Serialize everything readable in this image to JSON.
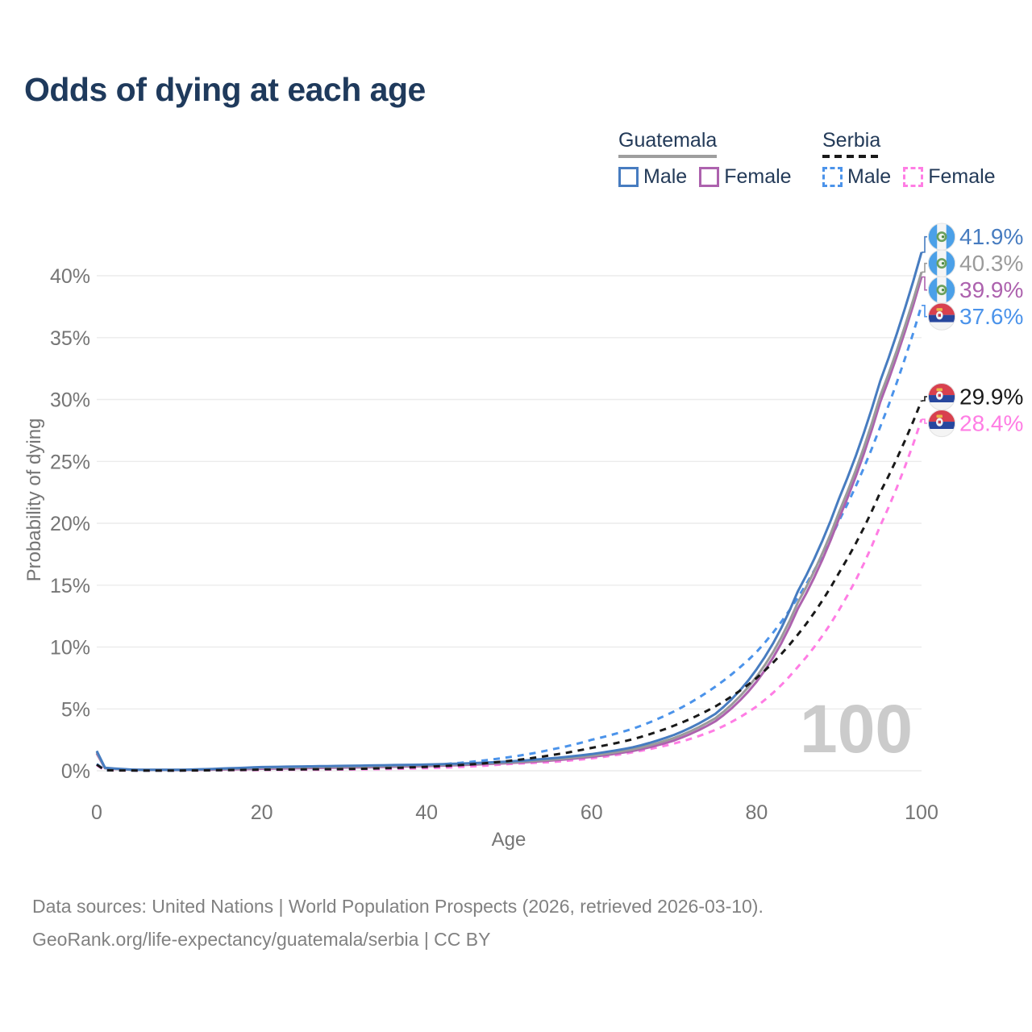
{
  "title": "Odds of dying at each age",
  "legend": {
    "groups": [
      {
        "label": "Guatemala",
        "line_style": "solid",
        "underline_color": "#9e9e9e",
        "items": [
          {
            "label": "Male",
            "color": "#477cc0"
          },
          {
            "label": "Female",
            "color": "#ad62ae"
          }
        ]
      },
      {
        "label": "Serbia",
        "line_style": "dashed",
        "underline_color": "#191919",
        "items": [
          {
            "label": "Male",
            "color": "#4b93ea"
          },
          {
            "label": "Female",
            "color": "#ff7de4"
          }
        ]
      }
    ]
  },
  "chart_data": {
    "type": "line",
    "title": "Odds of dying at each age",
    "xlabel": "Age",
    "ylabel": "Probability of dying",
    "xlim": [
      0,
      100
    ],
    "ylim": [
      0,
      43
    ],
    "xticks": [
      0,
      20,
      40,
      60,
      80,
      100
    ],
    "xtick_labels": [
      "0",
      "20",
      "40",
      "60",
      "80",
      "100"
    ],
    "yticks": [
      0,
      5,
      10,
      15,
      20,
      25,
      30,
      35,
      40
    ],
    "ytick_labels": [
      "0%",
      "5%",
      "10%",
      "15%",
      "20%",
      "25%",
      "30%",
      "35%",
      "40%"
    ],
    "grid": true,
    "legend_position": "top-right",
    "watermark": "100",
    "ages": [
      0,
      1,
      5,
      10,
      15,
      20,
      25,
      30,
      35,
      40,
      45,
      50,
      55,
      60,
      65,
      70,
      75,
      80,
      85,
      90,
      95,
      100
    ],
    "series": [
      {
        "name": "Serbia female",
        "country": "serbia",
        "sex": "female",
        "color": "#ff7de4",
        "dashed": true,
        "end_label": "28.4%",
        "end_value": 28.4,
        "values": [
          0.45,
          0.04,
          0.02,
          0.02,
          0.04,
          0.06,
          0.08,
          0.1,
          0.14,
          0.21,
          0.34,
          0.55,
          0.7,
          1.0,
          1.5,
          2.2,
          3.3,
          5.2,
          8.4,
          13.0,
          19.8,
          28.4
        ]
      },
      {
        "name": "Serbia male",
        "country": "serbia",
        "sex": "male",
        "color": "#4b93ea",
        "dashed": true,
        "end_label": "37.6%",
        "end_value": 37.6,
        "values": [
          0.55,
          0.05,
          0.02,
          0.02,
          0.06,
          0.12,
          0.15,
          0.2,
          0.3,
          0.45,
          0.7,
          1.1,
          1.7,
          2.5,
          3.4,
          4.8,
          6.8,
          9.6,
          14.0,
          20.2,
          27.8,
          37.6
        ]
      },
      {
        "name": "Guatemala female",
        "country": "guatemala",
        "sex": "female",
        "color": "#ad62ae",
        "dashed": false,
        "end_label": "39.9%",
        "end_value": 39.9,
        "values": [
          1.4,
          0.2,
          0.07,
          0.06,
          0.1,
          0.16,
          0.21,
          0.26,
          0.31,
          0.38,
          0.48,
          0.62,
          0.82,
          1.12,
          1.6,
          2.45,
          4.0,
          7.2,
          13.1,
          20.4,
          29.8,
          39.9
        ]
      },
      {
        "name": "Guatemala both sexes",
        "country": "guatemala",
        "sex": "all",
        "color": "#9b9b9b",
        "dashed": false,
        "end_label": "40.3%",
        "end_value": 40.3,
        "values": [
          1.5,
          0.22,
          0.07,
          0.07,
          0.14,
          0.24,
          0.29,
          0.33,
          0.38,
          0.44,
          0.54,
          0.68,
          0.9,
          1.22,
          1.73,
          2.65,
          4.25,
          7.6,
          13.6,
          20.9,
          30.3,
          40.3
        ]
      },
      {
        "name": "Guatemala male",
        "country": "guatemala",
        "sex": "male",
        "color": "#477cc0",
        "dashed": false,
        "end_label": "41.9%",
        "end_value": 41.9,
        "values": [
          1.6,
          0.25,
          0.08,
          0.08,
          0.18,
          0.3,
          0.35,
          0.4,
          0.45,
          0.5,
          0.6,
          0.75,
          1.0,
          1.35,
          1.9,
          2.9,
          4.6,
          8.2,
          14.5,
          22.0,
          31.5,
          41.9
        ]
      },
      {
        "name": "Serbia both sexes",
        "country": "serbia",
        "sex": "all",
        "color": "#191919",
        "dashed": true,
        "end_label": "29.9%",
        "end_value": 29.9,
        "values": [
          0.5,
          0.04,
          0.02,
          0.02,
          0.05,
          0.09,
          0.11,
          0.14,
          0.21,
          0.32,
          0.5,
          0.8,
          1.25,
          1.85,
          2.55,
          3.65,
          5.2,
          7.5,
          11.0,
          16.0,
          22.5,
          29.9
        ]
      }
    ]
  },
  "footer": {
    "line1": "Data sources: United Nations | World Population Prospects (2026, retrieved 2026-03-10).",
    "line2": "GeoRank.org/life-expectancy/guatemala/serbia | CC BY"
  }
}
